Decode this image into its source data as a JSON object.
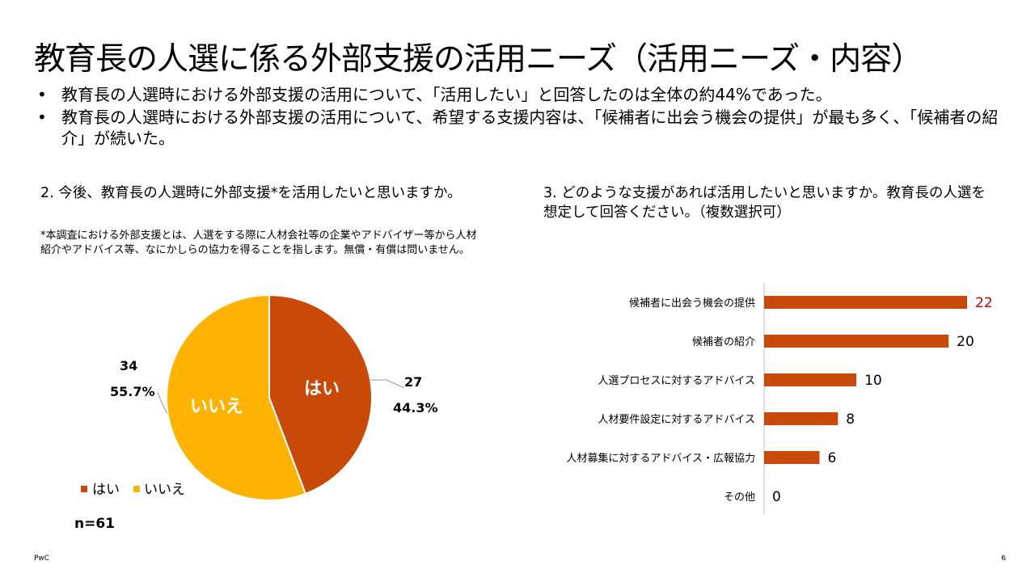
{
  "title": "教育長の人選に係る外部支援の活用ニーズ（活用ニーズ・内容）",
  "bullets": [
    "教育長の人選時における外部支援の活用について、「活用したい」と回答したのは全体の約44%であった。",
    "教育長の人選時における外部支援の活用について、希望する支援内容は、「候補者に出会う機会の提供」が最も多く、「候補者の紹介」が続いた。"
  ],
  "left_question": "2. 今後、教育長の人選時に外部支援*を活用したいと思いますか。",
  "left_note": "*本調査における外部支援とは、人選をする際に人材会社等の企業やアドバイザー等から人材紹介やアドバイス等、なにかしらの協力を得ることを指します。無償・有償は問いません。",
  "right_question": "3. どのような支援があれば活用したいと思いますか。教育長の人選を想定して回答ください。（複数選択可）",
  "n_label": "n=61",
  "footer": {
    "left": "PwC",
    "right": "6"
  },
  "colors": {
    "orange_red": "#C94A08",
    "yellow": "#FFB300",
    "highlight": "#C00000"
  },
  "chart_data": [
    {
      "type": "pie",
      "slices": [
        {
          "label": "はい",
          "count": "27",
          "percent": "44.3%",
          "value": 27,
          "color": "#C94A08"
        },
        {
          "label": "いいえ",
          "count": "34",
          "percent": "55.7%",
          "value": 34,
          "color": "#FFB300"
        }
      ],
      "legend": [
        "はい",
        "いいえ"
      ],
      "legend_position": "bottom-left"
    },
    {
      "type": "bar",
      "orientation": "horizontal",
      "categories": [
        "候補者に出会う機会の提供",
        "候補者の紹介",
        "人選プロセスに対するアドバイス",
        "人材要件設定に対するアドバイス",
        "人材募集に対するアドバイス・広報協力",
        "その他"
      ],
      "values": [
        22,
        20,
        10,
        8,
        6,
        0
      ],
      "value_labels": [
        "22",
        "20",
        "10",
        "8",
        "6",
        "0"
      ],
      "xlim": [
        0,
        22
      ],
      "grid": false
    }
  ]
}
